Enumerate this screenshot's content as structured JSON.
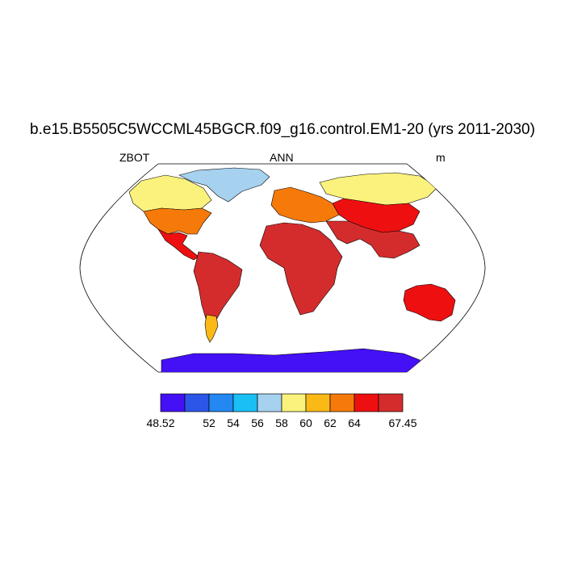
{
  "title": "b.e15.B5505C5WCCML45BGCR.f09_g16.control.EM1-20 (yrs 2011-2030)",
  "subtitle_left": "ZBOT",
  "subtitle_center": "ANN",
  "subtitle_right": "m",
  "colorbar": {
    "colors": [
      "#4410f5",
      "#2c56e8",
      "#2388f2",
      "#19bff5",
      "#a6d2ef",
      "#fbf27d",
      "#fbb916",
      "#f67a0a",
      "#ee1010",
      "#d42c2c"
    ],
    "labels": [
      "48.52",
      "52",
      "54",
      "56",
      "58",
      "60",
      "62",
      "64",
      "67.45"
    ],
    "label_boundary_index": [
      0,
      2,
      3,
      4,
      5,
      6,
      7,
      8,
      10
    ]
  },
  "map": {
    "projection": "robinson",
    "ocean_color": "#ffffff",
    "regions": [
      {
        "name": "greenland",
        "color_index": 4
      },
      {
        "name": "canada-north",
        "color_index": 5
      },
      {
        "name": "usa",
        "color_index": 7
      },
      {
        "name": "central-america",
        "color_index": 8
      },
      {
        "name": "south-america",
        "color_index": 9
      },
      {
        "name": "patagonia",
        "color_index": 6
      },
      {
        "name": "africa",
        "color_index": 9
      },
      {
        "name": "europe",
        "color_index": 7
      },
      {
        "name": "siberia",
        "color_index": 5
      },
      {
        "name": "central-asia",
        "color_index": 8
      },
      {
        "name": "south-asia",
        "color_index": 9
      },
      {
        "name": "australia",
        "color_index": 8
      },
      {
        "name": "antarctica",
        "color_index": 0
      }
    ]
  }
}
